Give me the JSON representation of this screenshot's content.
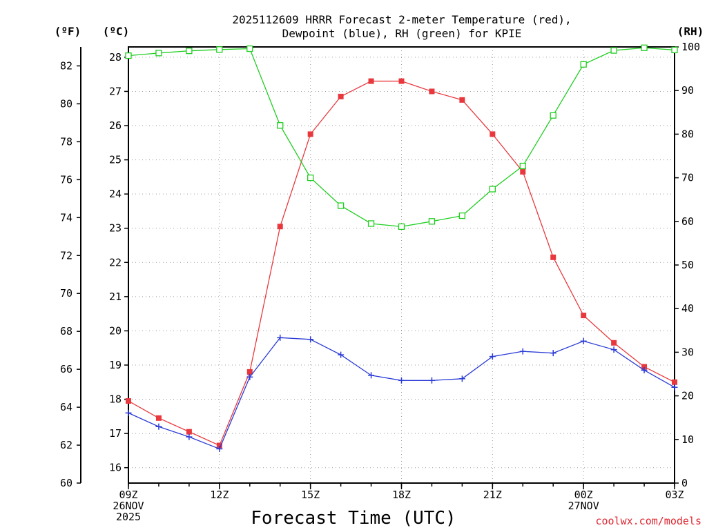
{
  "title_lines": [
    "2025112609 HRRR Forecast 2-meter Temperature (red),",
    "Dewpoint (blue), RH (green) for KPIE"
  ],
  "units": {
    "fahrenheit": "(ºF)",
    "celsius": "(ºC)",
    "rh": "(RH)"
  },
  "credit": "coolwx.com/models",
  "colors": {
    "temperature": "#e8383d",
    "dewpoint": "#2a3bd6",
    "rh": "#1fce1f"
  },
  "chart_data": {
    "type": "line",
    "title": "2025112609 HRRR Forecast 2-meter Temperature (red), Dewpoint (blue), RH (green) for KPIE",
    "xlabel": "Forecast Time (UTC)",
    "x_hours_utc": [
      "09",
      "10",
      "11",
      "12",
      "13",
      "14",
      "15",
      "16",
      "17",
      "18",
      "19",
      "20",
      "21",
      "22",
      "23",
      "00",
      "01",
      "02",
      "03"
    ],
    "x_ticks": [
      {
        "hour": "09",
        "lines": [
          "09Z",
          "26NOV",
          "2025"
        ]
      },
      {
        "hour": "12",
        "lines": [
          "12Z"
        ]
      },
      {
        "hour": "15",
        "lines": [
          "15Z"
        ]
      },
      {
        "hour": "18",
        "lines": [
          "18Z"
        ]
      },
      {
        "hour": "21",
        "lines": [
          "21Z"
        ]
      },
      {
        "hour": "00",
        "lines": [
          "00Z",
          "27NOV"
        ]
      },
      {
        "hour": "03",
        "lines": [
          "03Z"
        ]
      }
    ],
    "y_celsius": {
      "range": [
        15.55,
        28.3
      ],
      "ticks": [
        16,
        17,
        18,
        19,
        20,
        21,
        22,
        23,
        24,
        25,
        26,
        27,
        28
      ]
    },
    "y_fahrenheit": {
      "range": [
        60,
        83
      ],
      "ticks": [
        60,
        62,
        64,
        66,
        68,
        70,
        72,
        74,
        76,
        78,
        80,
        82
      ]
    },
    "y_rh": {
      "range": [
        0,
        100
      ],
      "ticks": [
        0,
        10,
        20,
        30,
        40,
        50,
        60,
        70,
        80,
        90,
        100
      ]
    },
    "grid": true,
    "series": [
      {
        "name": "Temperature",
        "axis": "celsius",
        "marker": "filled-square",
        "values": [
          17.95,
          17.45,
          17.05,
          16.65,
          18.8,
          23.05,
          25.75,
          26.85,
          27.3,
          27.3,
          27.0,
          26.75,
          25.75,
          24.65,
          22.15,
          20.45,
          19.65,
          18.95,
          18.5
        ]
      },
      {
        "name": "Dewpoint",
        "axis": "celsius",
        "marker": "plus",
        "values": [
          17.6,
          17.2,
          16.9,
          16.55,
          18.65,
          19.8,
          19.75,
          19.3,
          18.7,
          18.55,
          18.55,
          18.6,
          19.25,
          19.4,
          19.35,
          19.7,
          19.45,
          18.85,
          18.35
        ]
      },
      {
        "name": "RH",
        "axis": "rh",
        "marker": "open-square",
        "values": [
          98,
          98.6,
          99.1,
          99.4,
          99.6,
          82,
          70,
          63.6,
          59.5,
          58.8,
          60,
          61.3,
          67.4,
          72.7,
          84.3,
          96,
          99.2,
          99.8,
          99.3
        ]
      }
    ]
  }
}
